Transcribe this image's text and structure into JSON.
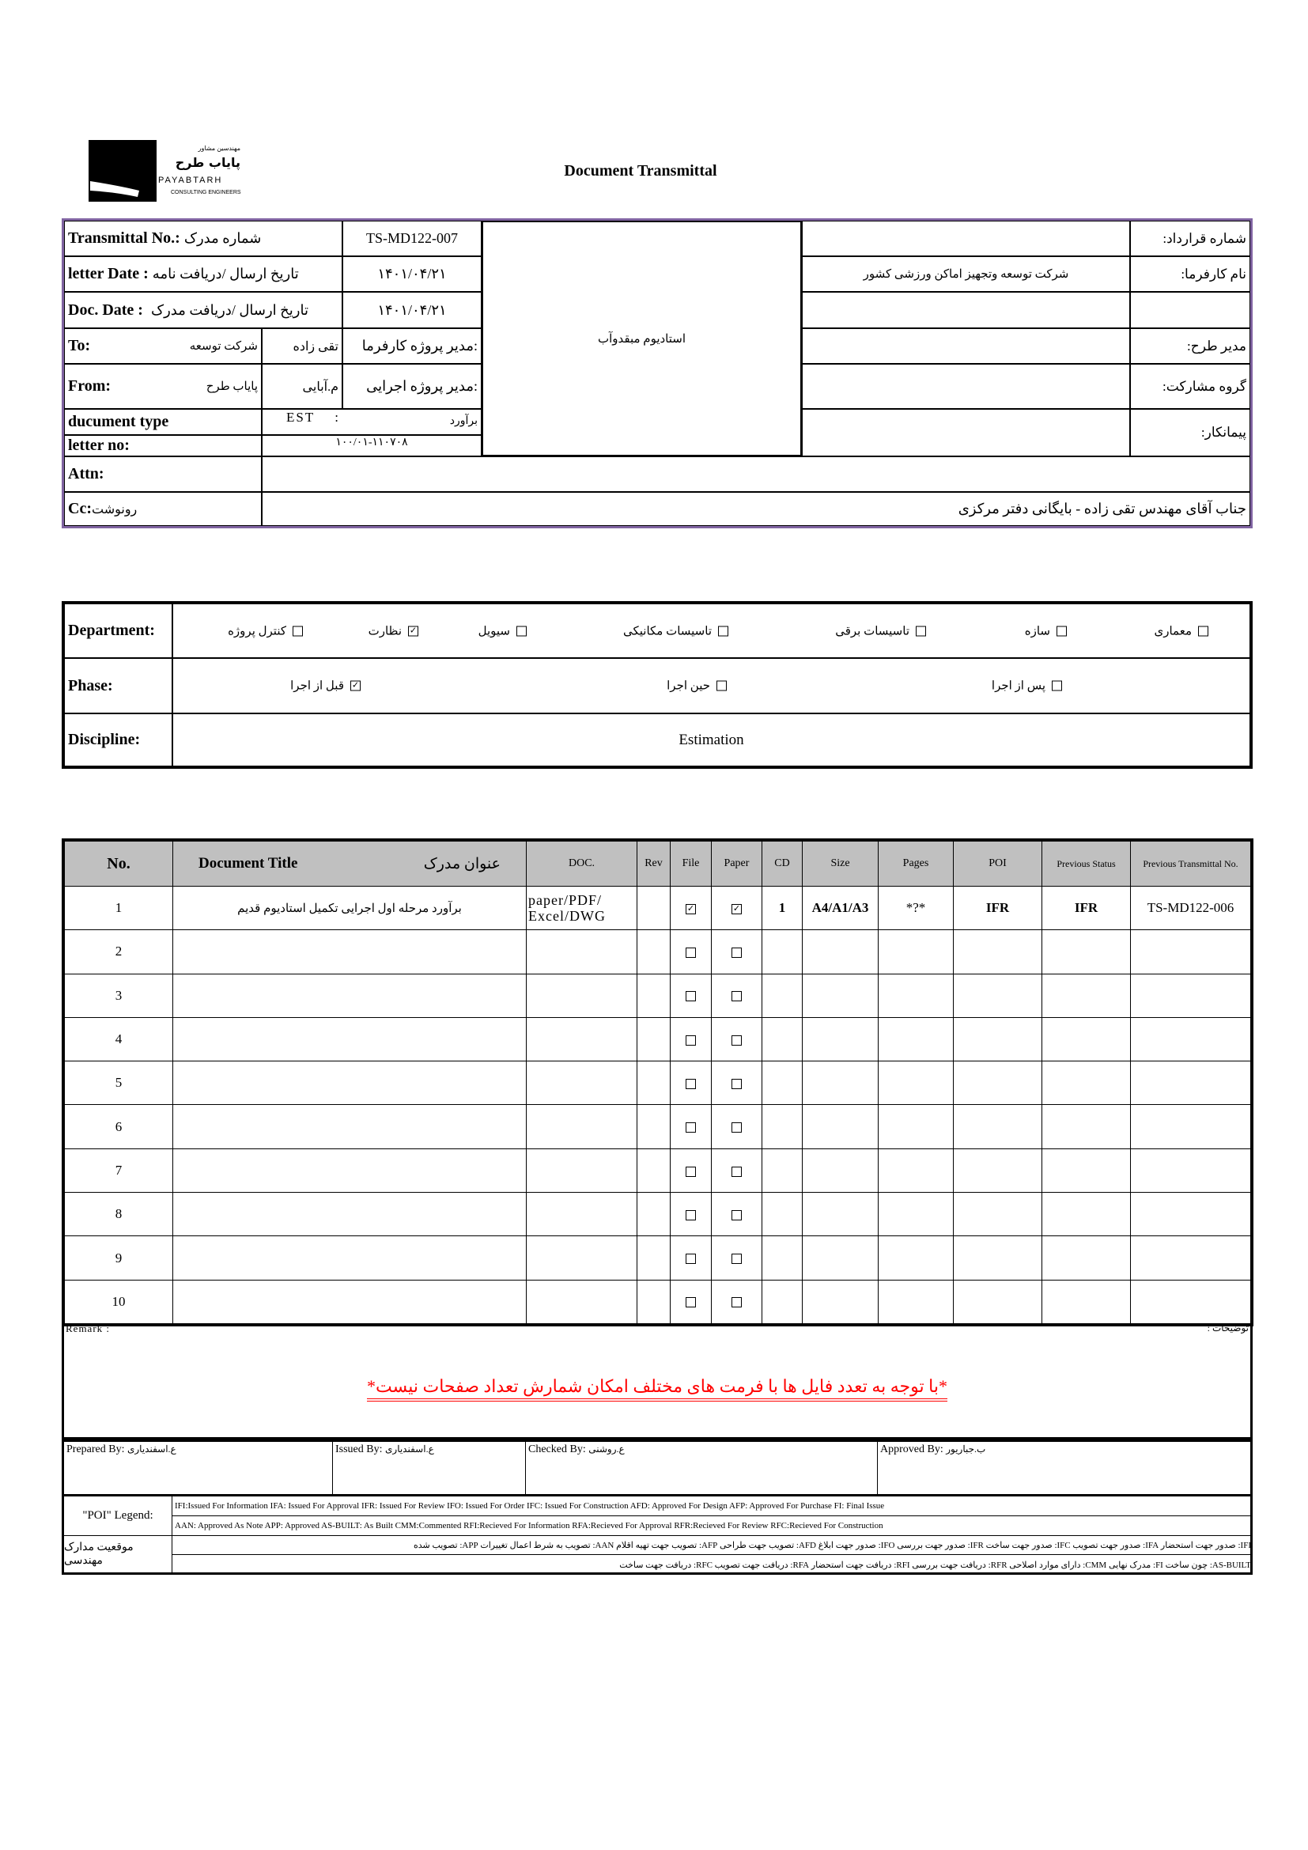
{
  "logo": {
    "fa_small": "مهندسین مشاور",
    "fa_name": "پایاب طرح",
    "en_name": "PAYABTARH",
    "en_sub": "CONSULTING ENGINEERS"
  },
  "title": "Document Transmittal",
  "colors": {
    "top_border": "#8064A2",
    "header_fill": "#C0C0C0",
    "remark_note": "#FF0000"
  },
  "info": {
    "transmittal_label": "Transmittal No.:",
    "transmittal_label_fa": "شماره مدرک",
    "transmittal_no": "TS-MD122-007",
    "letter_date_label": "letter Date :",
    "letter_date_label_fa": "تاریخ ارسال /دریافت نامه",
    "letter_date": "۱۴۰۱/۰۴/۲۱",
    "doc_date_label": "Doc. Date :",
    "doc_date_label_fa": "تاریخ ارسال /دریافت مدرک",
    "doc_date": "۱۴۰۱/۰۴/۲۱",
    "to_label": "To:",
    "to_company": "شرکت توسعه",
    "to_person": "تقی زاده",
    "to_role": "مدیر پروژه کارفرما:",
    "from_label": "From:",
    "from_company": "پایاب طرح",
    "from_person": "م.آبایی",
    "from_role": "مدیر پروژه اجرایی:",
    "doctype_label": "ducument type",
    "doctype_code": "EST",
    "doctype_sep": ":",
    "doctype_fa": "برآورد",
    "letter_no_label": "letter no:",
    "letter_no": "۱۰۰/۰۱-۱۱۰۷۰۸",
    "project": "استادیوم مبقدوآب",
    "right_rows": [
      {
        "label": "شماره قرارداد:",
        "value": ""
      },
      {
        "label": "نام کارفرما:",
        "value": "شرکت توسعه وتجهیز اماکن ورزشی کشور"
      },
      {
        "label": "",
        "value": ""
      },
      {
        "label": "مدیر طرح:",
        "value": ""
      },
      {
        "label": "گروه مشارکت:",
        "value": ""
      },
      {
        "label": "پیمانکار:",
        "value": ""
      }
    ],
    "attn_label": "Attn:",
    "attn_value": "",
    "cc_label": "Cc:",
    "cc_label_fa": "رونوشت",
    "cc_value": "جناب آقای مهندس تقی زاده - بایگانی دفتر مرکزی"
  },
  "department": {
    "label": "Department:",
    "items": [
      {
        "label": "کنترل پروژه",
        "checked": false
      },
      {
        "label": "نظارت",
        "checked": true
      },
      {
        "label": "سیویل",
        "checked": false
      },
      {
        "label": "تاسیسات مکانیکی",
        "checked": false
      },
      {
        "label": "تاسیسات برقی",
        "checked": false
      },
      {
        "label": "سازه",
        "checked": false
      },
      {
        "label": "معماری",
        "checked": false
      }
    ]
  },
  "phase": {
    "label": "Phase:",
    "items": [
      {
        "label": "قبل از اجرا",
        "checked": true
      },
      {
        "label": "حین اجرا",
        "checked": false
      },
      {
        "label": "پس از اجرا",
        "checked": false
      }
    ]
  },
  "discipline": {
    "label": "Discipline:",
    "value": "Estimation"
  },
  "table": {
    "headers": {
      "no": "No.",
      "title_en": "Document Title",
      "title_fa": "عنوان مدرک",
      "doc": "DOC.",
      "rev": "Rev",
      "file": "File",
      "paper": "Paper",
      "cd": "CD",
      "size": "Size",
      "pages": "Pages",
      "poi": "POI",
      "prev_status": "Previous Status",
      "prev_no": "Previous Transmittal No."
    },
    "rows": [
      {
        "no": "1",
        "title": "برآورد مرحله اول اجرایی تکمیل استادیوم قدیم",
        "doc": "paper/PDF/ Excel/DWG",
        "rev": "",
        "file": true,
        "paper": true,
        "cd": "1",
        "size": "A4/A1/A3",
        "pages": "*?*",
        "poi": "IFR",
        "prev_status": "IFR",
        "prev_no": "TS-MD122-006"
      },
      {
        "no": "2",
        "file": false,
        "paper": false
      },
      {
        "no": "3",
        "file": false,
        "paper": false
      },
      {
        "no": "4",
        "file": false,
        "paper": false
      },
      {
        "no": "5",
        "file": false,
        "paper": false
      },
      {
        "no": "6",
        "file": false,
        "paper": false
      },
      {
        "no": "7",
        "file": false,
        "paper": false
      },
      {
        "no": "8",
        "file": false,
        "paper": false
      },
      {
        "no": "9",
        "file": false,
        "paper": false
      },
      {
        "no": "10",
        "file": false,
        "paper": false
      }
    ]
  },
  "remark": {
    "label_en": "Remark :",
    "label_fa": "توضیحات :",
    "note": "*با توجه به تعدد فایل ها با فرمت های مختلف امکان شمارش تعداد صفحات نیست*"
  },
  "signatures": [
    {
      "label": "Prepared By:",
      "name": "ع.اسفندیاری"
    },
    {
      "label": "Issued By:",
      "name": "ع.اسفندیاری"
    },
    {
      "label": "Checked By:",
      "name": "ع.روشنی"
    },
    {
      "label": "Approved By:",
      "name": "ب.جباریور"
    }
  ],
  "legend": {
    "poi_label": "\"POI\" Legend:",
    "fa_label": "موقعیت مدارک مهندسی",
    "lines": [
      "IFI:Issued For Information  IFA: Issued For Approval  IFR: Issued For Review   IFO: Issued For Order  IFC: Issued For Construction AFD: Approved For Design AFP: Approved For Purchase  FI: Final Issue",
      "AAN: Approved As Note  APP: Approved  AS-BUILT: As Built CMM:Commented  RFI:Recieved For Information   RFA:Recieved For Approval   RFR:Recieved For Review  RFC:Recieved For Construction",
      "IFI: صدور جهت استحضار    IFA: صدور جهت تصویب    IFC: صدور جهت ساخت    IFR: صدور جهت بررسی    IFO: صدور جهت ابلاغ    AFD: تصویب جهت طراحی    AFP: تصویب جهت تهیه اقلام    AAN: تصویب به شرط اعمال تغییرات    APP: تصویب شده",
      "AS-BUILT: چون ساخت    FI: مدرک نهایی    CMM: دارای موارد اصلاحی    RFR: دریافت جهت بررسی    RFI: دریافت جهت استحضار    RFA: دریافت جهت تصویب    RFC: دریافت جهت ساخت"
    ]
  }
}
